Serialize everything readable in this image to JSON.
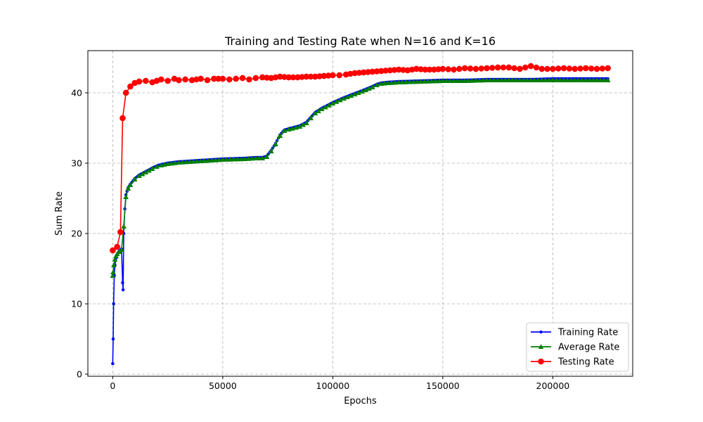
{
  "chart_data": {
    "type": "line",
    "title": "Training and Testing Rate when N=16 and K=16",
    "xlabel": "Epochs",
    "ylabel": "Sum Rate",
    "xlim": [
      -11300,
      236300
    ],
    "ylim": [
      -0.3,
      46.0
    ],
    "xticks": [
      0,
      50000,
      100000,
      150000,
      200000
    ],
    "xtick_labels": [
      "0",
      "50000",
      "100000",
      "150000",
      "200000"
    ],
    "yticks": [
      0,
      10,
      20,
      30,
      40
    ],
    "ytick_labels": [
      "0",
      "10",
      "20",
      "30",
      "40"
    ],
    "grid": true,
    "legend_position": "lower-right",
    "series": [
      {
        "name": "Training Rate",
        "color": "#0000ff",
        "marker": "dot",
        "x": [
          0,
          200,
          400,
          700,
          1000,
          1500,
          2000,
          3000,
          4000,
          4500,
          4700,
          5000,
          5500,
          6000,
          7000,
          8000,
          10000,
          12000,
          15000,
          18000,
          20000,
          22000,
          25000,
          30000,
          40000,
          50000,
          60000,
          65000,
          68000,
          70000,
          72000,
          74000,
          76000,
          78000,
          80000,
          85000,
          88000,
          90000,
          92000,
          95000,
          100000,
          105000,
          110000,
          115000,
          118000,
          120000,
          122000,
          125000,
          130000,
          140000,
          150000,
          160000,
          170000,
          180000,
          190000,
          200000,
          210000,
          220000,
          225000
        ],
        "y": [
          1.5,
          5.0,
          10.0,
          14.0,
          15.5,
          16.5,
          17.0,
          17.5,
          17.8,
          13.0,
          12.0,
          20.0,
          23.5,
          25.5,
          26.5,
          27.0,
          27.8,
          28.3,
          28.8,
          29.3,
          29.6,
          29.8,
          30.0,
          30.2,
          30.4,
          30.6,
          30.7,
          30.8,
          30.8,
          31.0,
          31.8,
          32.8,
          34.0,
          34.7,
          34.9,
          35.3,
          35.8,
          36.5,
          37.2,
          37.8,
          38.6,
          39.3,
          39.9,
          40.5,
          40.9,
          41.2,
          41.4,
          41.5,
          41.6,
          41.7,
          41.8,
          41.8,
          41.9,
          41.9,
          41.9,
          42.0,
          42.0,
          42.0,
          42.0
        ]
      },
      {
        "name": "Average Rate",
        "color": "#008000",
        "marker": "triangle",
        "x": [
          0,
          200,
          500,
          1000,
          1500,
          2000,
          3000,
          4000,
          5000,
          6000,
          7000,
          8000,
          10000,
          12000,
          15000,
          18000,
          20000,
          22000,
          25000,
          30000,
          40000,
          50000,
          60000,
          65000,
          68000,
          70000,
          72000,
          74000,
          76000,
          78000,
          80000,
          85000,
          88000,
          90000,
          92000,
          95000,
          100000,
          105000,
          110000,
          115000,
          118000,
          120000,
          122000,
          125000,
          130000,
          140000,
          150000,
          160000,
          170000,
          180000,
          190000,
          200000,
          210000,
          220000,
          225000
        ],
        "y": [
          14.0,
          14.5,
          15.5,
          16.3,
          16.8,
          17.1,
          17.4,
          17.7,
          21.0,
          25.2,
          26.4,
          26.9,
          27.7,
          28.2,
          28.7,
          29.2,
          29.5,
          29.7,
          29.9,
          30.1,
          30.3,
          30.5,
          30.6,
          30.7,
          30.7,
          30.9,
          31.7,
          32.7,
          33.9,
          34.6,
          34.8,
          35.2,
          35.7,
          36.4,
          37.1,
          37.7,
          38.5,
          39.2,
          39.8,
          40.4,
          40.8,
          41.1,
          41.3,
          41.4,
          41.5,
          41.6,
          41.7,
          41.7,
          41.8,
          41.8,
          41.8,
          41.8,
          41.8,
          41.8,
          41.8
        ]
      },
      {
        "name": "Testing Rate",
        "color": "#ff0000",
        "marker": "circle",
        "x": [
          0,
          2000,
          3500,
          4500,
          6000,
          8000,
          10000,
          12000,
          15000,
          18000,
          20000,
          22000,
          25000,
          28000,
          30000,
          33000,
          36000,
          40000,
          43000,
          46000,
          50000,
          53000,
          56000,
          59000,
          62000,
          65000,
          68000,
          72000,
          76000,
          80000,
          84000,
          88000,
          92000,
          96000,
          100000,
          103000,
          106000,
          110000,
          114000,
          118000,
          122000,
          126000,
          130000,
          134000,
          138000,
          142000,
          146000,
          150000,
          155000,
          160000,
          165000,
          170000,
          175000,
          180000,
          185000,
          190000,
          195000,
          200000,
          205000,
          210000,
          215000,
          220000,
          225000
        ],
        "y": [
          17.6,
          18.1,
          20.2,
          36.4,
          40.0,
          40.9,
          41.4,
          41.6,
          41.7,
          41.5,
          41.7,
          41.9,
          41.7,
          42.0,
          41.8,
          41.9,
          41.8,
          42.0,
          41.8,
          42.0,
          42.0,
          41.9,
          42.0,
          42.1,
          41.9,
          42.1,
          42.2,
          42.1,
          42.3,
          42.2,
          42.2,
          42.3,
          42.3,
          42.4,
          42.5,
          42.5,
          42.6,
          42.8,
          42.9,
          43.0,
          43.1,
          43.2,
          43.3,
          43.2,
          43.4,
          43.3,
          43.3,
          43.4,
          43.3,
          43.5,
          43.4,
          43.5,
          43.6,
          43.6,
          43.4,
          43.8,
          43.4,
          43.4,
          43.5,
          43.4,
          43.5,
          43.4,
          43.5
        ]
      }
    ]
  }
}
